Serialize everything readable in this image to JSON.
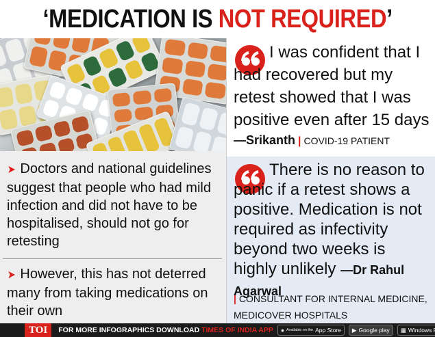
{
  "headline": {
    "part1": "‘MEDICATION IS ",
    "part2": "NOT REQUIRED",
    "part3": "’"
  },
  "quotes": [
    {
      "text": "I was confident that I had recovered but my retest showed that I was positive even after 15 days",
      "speaker": "—Srikanth",
      "role": "COVID-19 PATIENT"
    },
    {
      "text": "There is no reason to panic if a retest shows a positive. Medication is not required as infectivity beyond two weeks is highly unlikely",
      "speaker": "—Dr Rahul Agarwal",
      "role": "CONSULTANT FOR INTERNAL MEDICINE, MEDICOVER HOSPITALS"
    }
  ],
  "bullets": [
    "Doctors and national guidelines suggest that people who had mild infection and did not have to be hospitalised, should not go for retesting",
    "However, this has not deterred many from taking medications on their own"
  ],
  "footer": {
    "brand": "TOI",
    "text_main": "FOR MORE INFOGRAPHICS DOWNLOAD ",
    "text_accent": "TIMES OF INDIA APP",
    "app_store": "App Store",
    "app_store_small": "Available on the",
    "google_play": "Google play",
    "windows": "Windows Phone"
  },
  "colors": {
    "accent": "#d9221c",
    "panel_blue": "#e4ebf5",
    "panel_grey": "#eeeeee"
  },
  "icons": [
    "quote-mark-icon",
    "arrow-bullet-icon",
    "apple-icon",
    "google-play-icon",
    "windows-icon"
  ]
}
